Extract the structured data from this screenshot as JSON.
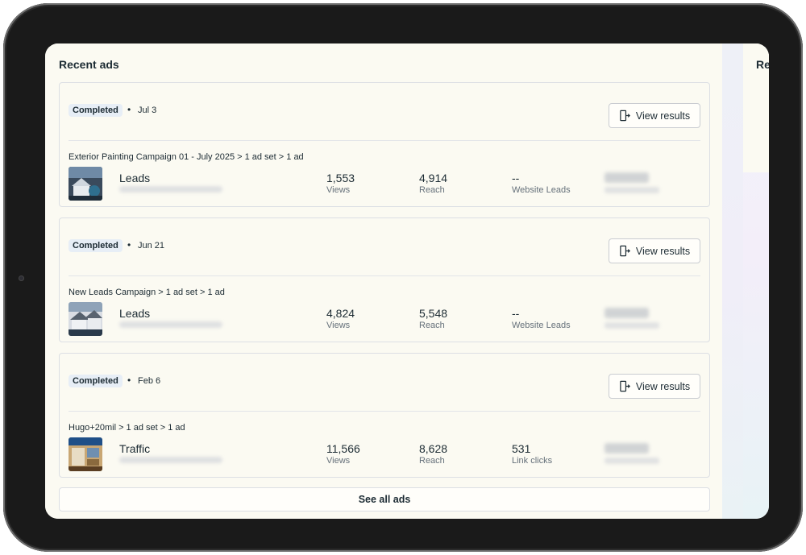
{
  "section": {
    "title": "Recent ads",
    "right_panel_title": "Re"
  },
  "ads": [
    {
      "status": "Completed",
      "separator": "•",
      "date": "Jul 3",
      "view_results_label": "View results",
      "path": "Exterior Painting Campaign 01 - July 2025 > 1 ad set > 1 ad",
      "objective": "Leads",
      "metrics": [
        {
          "value": "1,553",
          "label": "Views"
        },
        {
          "value": "4,914",
          "label": "Reach"
        },
        {
          "value": "--",
          "label": "Website Leads"
        }
      ]
    },
    {
      "status": "Completed",
      "separator": "•",
      "date": "Jun 21",
      "view_results_label": "View results",
      "path": "New Leads Campaign > 1 ad set > 1 ad",
      "objective": "Leads",
      "metrics": [
        {
          "value": "4,824",
          "label": "Views"
        },
        {
          "value": "5,548",
          "label": "Reach"
        },
        {
          "value": "--",
          "label": "Website Leads"
        }
      ]
    },
    {
      "status": "Completed",
      "separator": "•",
      "date": "Feb 6",
      "view_results_label": "View results",
      "path": "Hugo+20mil > 1 ad set > 1 ad",
      "objective": "Traffic",
      "metrics": [
        {
          "value": "11,566",
          "label": "Views"
        },
        {
          "value": "8,628",
          "label": "Reach"
        },
        {
          "value": "531",
          "label": "Link clicks"
        }
      ]
    }
  ],
  "see_all_label": "See all ads",
  "icons": {
    "view_results": "view-results-icon"
  },
  "colors": {
    "background": "#fbfaf2",
    "text": "#1c2b33",
    "badge": "#e7eef6",
    "device": "#1a1a1a"
  }
}
